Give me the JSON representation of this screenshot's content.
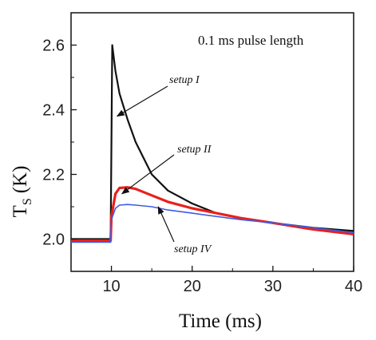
{
  "chart_data": {
    "type": "line",
    "title": "",
    "subtitle": "0.1 ms pulse length",
    "xlabel": "Time (ms)",
    "ylabel_main": "T",
    "ylabel_sub": "S",
    "ylabel_unit": "(K)",
    "xlim": [
      5,
      40
    ],
    "ylim": [
      1.9,
      2.7
    ],
    "xticks": [
      10,
      20,
      30,
      40
    ],
    "yticks": [
      2.0,
      2.2,
      2.4,
      2.6
    ],
    "ytick_labels": [
      "2.0",
      "2.2",
      "2.4",
      "2.6"
    ],
    "grid": false,
    "series": [
      {
        "name": "setup I",
        "color": "#111111",
        "x": [
          5,
          9.9,
          10,
          10.1,
          10.5,
          11,
          12,
          13,
          14,
          15,
          17,
          20,
          23,
          26,
          30,
          35,
          40
        ],
        "y": [
          2.0,
          2.0,
          2.3,
          2.6,
          2.52,
          2.45,
          2.37,
          2.3,
          2.25,
          2.2,
          2.15,
          2.11,
          2.08,
          2.065,
          2.05,
          2.035,
          2.025
        ]
      },
      {
        "name": "setup II",
        "color": "#e8201c",
        "x": [
          5,
          9.9,
          10,
          10.5,
          11,
          12,
          13,
          15,
          17,
          20,
          23,
          26,
          30,
          35,
          40
        ],
        "y": [
          1.995,
          1.995,
          2.07,
          2.14,
          2.158,
          2.16,
          2.155,
          2.135,
          2.115,
          2.095,
          2.08,
          2.065,
          2.05,
          2.03,
          2.015
        ]
      },
      {
        "name": "setup IV",
        "color": "#3d5ce6",
        "x": [
          5,
          9.9,
          10,
          10.5,
          11,
          12,
          13,
          15,
          17,
          20,
          23,
          26,
          30,
          35,
          40
        ],
        "y": [
          1.99,
          1.99,
          2.06,
          2.095,
          2.105,
          2.107,
          2.105,
          2.1,
          2.09,
          2.08,
          2.07,
          2.06,
          2.05,
          2.035,
          2.02
        ]
      }
    ],
    "annotations": [
      {
        "text": "setup I",
        "target_x": 10.7,
        "target_y": 2.38
      },
      {
        "text": "setup II",
        "target_x": 11.3,
        "target_y": 2.14
      },
      {
        "text": "setup IV",
        "target_x": 15.8,
        "target_y": 2.1
      }
    ]
  }
}
